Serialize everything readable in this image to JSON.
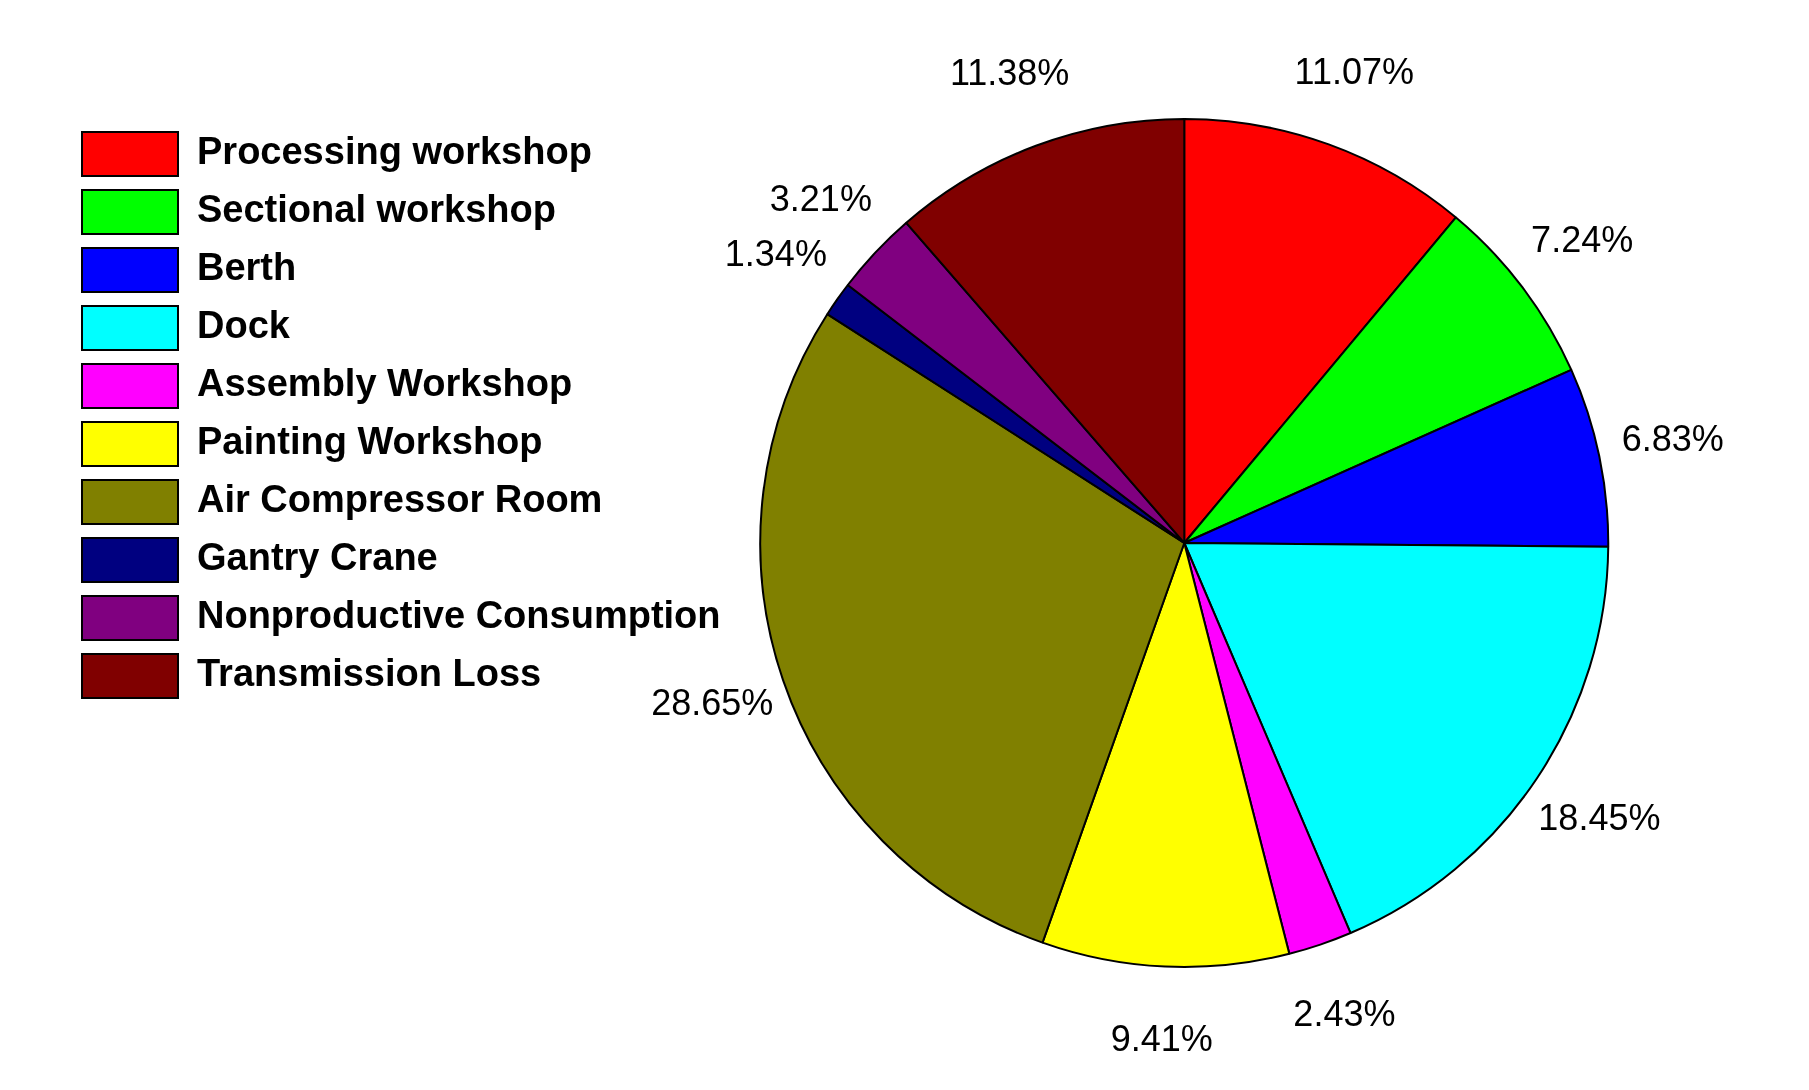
{
  "chart_data": {
    "type": "pie",
    "categories": [
      "Processing workshop",
      "Sectional workshop",
      "Berth",
      "Dock",
      "Assembly Workshop",
      "Painting Workshop",
      "Air Compressor Room",
      "Gantry Crane",
      "Nonproductive Consumption",
      "Transmission Loss"
    ],
    "values": [
      11.07,
      7.24,
      6.83,
      18.45,
      2.43,
      9.41,
      28.65,
      1.34,
      3.21,
      11.38
    ],
    "colors": [
      "#ff0000",
      "#00ff00",
      "#0000ff",
      "#00ffff",
      "#ff00ff",
      "#ffff00",
      "#808000",
      "#000080",
      "#800080",
      "#800000"
    ],
    "value_labels": [
      "11.07%",
      "7.24%",
      "6.83%",
      "18.45%",
      "2.43%",
      "9.41%",
      "28.65%",
      "1.34%",
      "3.21%",
      "11.38%"
    ],
    "legend": "top left"
  }
}
